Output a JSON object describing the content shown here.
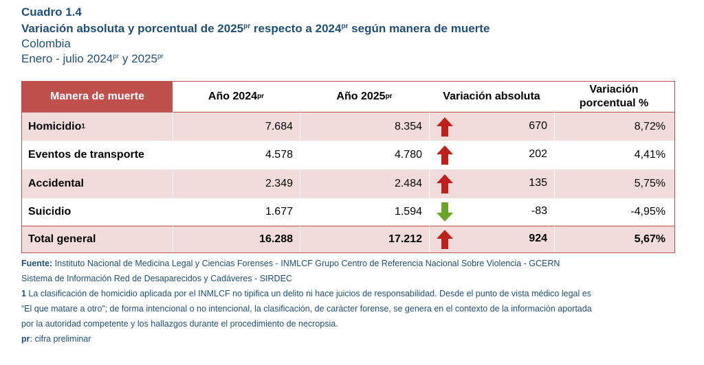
{
  "title": {
    "cuadro": "Cuadro 1.4",
    "heading_a": "Variación absoluta y porcentual de 2025",
    "heading_sup1": "pr",
    "heading_b": " respecto a 2024",
    "heading_sup2": "pr",
    "heading_c": " según manera de muerte",
    "country": "Colombia",
    "period_a": "Enero - julio 2024",
    "period_sup1": "pr",
    "period_b": " y 2025",
    "period_sup2": "pr"
  },
  "table": {
    "headers": {
      "c0": "Manera de muerte",
      "c1": "Año 2024",
      "c1_sup": "pr",
      "c2": "Año 2025",
      "c2_sup": "pr",
      "c3": "Variación absoluta",
      "c4_line1": "Variación",
      "c4_line2": "porcentual %"
    },
    "rows": [
      {
        "name": "Homicidio",
        "sup": "1",
        "y2024": "7.684",
        "y2025": "8.354",
        "direction": "up",
        "abs": "670",
        "pct": "8,72%"
      },
      {
        "name": "Eventos de transporte",
        "sup": "",
        "y2024": "4.578",
        "y2025": "4.780",
        "direction": "up",
        "abs": "202",
        "pct": "4,41%"
      },
      {
        "name": "Accidental",
        "sup": "",
        "y2024": "2.349",
        "y2025": "2.484",
        "direction": "up",
        "abs": "135",
        "pct": "5,75%"
      },
      {
        "name": "Suicidio",
        "sup": "",
        "y2024": "1.677",
        "y2025": "1.594",
        "direction": "down",
        "abs": "-83",
        "pct": "-4,95%"
      },
      {
        "name": "Total general",
        "sup": "",
        "y2024": "16.288",
        "y2025": "17.212",
        "direction": "up",
        "abs": "924",
        "pct": "5,67%"
      }
    ]
  },
  "notes": {
    "fuente_label": "Fuente:",
    "fuente_text": " Instituto Nacional de Medicina Legal y Ciencias Forenses - INMLCF Grupo Centro de Referencia Nacional Sobre Violencia - GCERN",
    "line2": "Sistema de Información Red de Desaparecidos y Cadáveres - SIRDEC",
    "note1_label": "1",
    "note1_text": " La clasificación de homicidio aplicada por el INMLCF no tipifica un delito ni hace juicios de responsabilidad. Desde el punto de vista médico legal es",
    "note1_line2": "“El que matare a otro”; de forma intencional o no intencional, la clasificación, de carácter forense, se genera en el contexto de la información aportada",
    "note1_line3": " por la autoridad competente y los hallazgos durante el procedimiento de necropsia.",
    "pr_label": "pr",
    "pr_text": ": cifra preliminar"
  },
  "colors": {
    "title_blue": "#1f4e79",
    "header_red": "#c0504d",
    "row_shade": "#f2dcdb",
    "arrow_up": "#c0201a",
    "arrow_down": "#6aa52a"
  }
}
